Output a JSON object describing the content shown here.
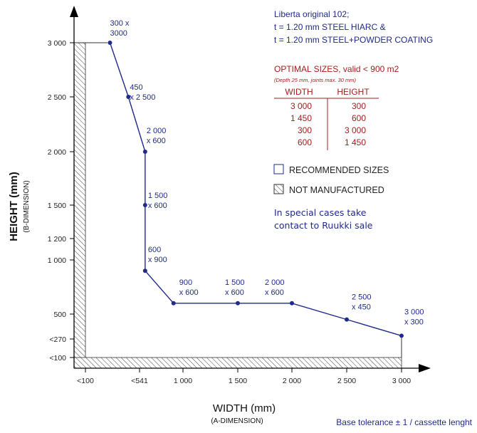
{
  "chart_data": {
    "type": "line",
    "xlabel": "WIDTH (mm)",
    "xlabel_sub": "(A-DIMENSION)",
    "ylabel": "HEIGHT (mm)",
    "ylabel_sub": "(B-DIMENSION)",
    "x_ticks": [
      {
        "value": 100,
        "label": "<100"
      },
      {
        "value": 541,
        "label": "<541"
      },
      {
        "value": 1000,
        "label": "1 000"
      },
      {
        "value": 1500,
        "label": "1 500"
      },
      {
        "value": 2000,
        "label": "2 000"
      },
      {
        "value": 2500,
        "label": "2 500"
      },
      {
        "value": 3000,
        "label": "3 000"
      }
    ],
    "y_ticks": [
      {
        "value": 100,
        "label": "<100"
      },
      {
        "value": 270,
        "label": "<270"
      },
      {
        "value": 500,
        "label": "500"
      },
      {
        "value": 1000,
        "label": "1 000"
      },
      {
        "value": 1200,
        "label": "1 200"
      },
      {
        "value": 1500,
        "label": "1 500"
      },
      {
        "value": 2000,
        "label": "2 000"
      },
      {
        "value": 2500,
        "label": "2 500"
      },
      {
        "value": 3000,
        "label": "3 000"
      }
    ],
    "x_anchors": [
      [
        100,
        100
      ],
      [
        541,
        541
      ],
      [
        1000,
        1000
      ],
      [
        1500,
        1500
      ],
      [
        2000,
        2000
      ],
      [
        2500,
        2500
      ],
      [
        3000,
        3000
      ]
    ],
    "y_anchors": [
      [
        100,
        100
      ],
      [
        270,
        270
      ],
      [
        500,
        500
      ],
      [
        1000,
        1000
      ],
      [
        1200,
        1200
      ],
      [
        1500,
        1500
      ],
      [
        2000,
        2000
      ],
      [
        2500,
        2500
      ],
      [
        3000,
        3000
      ]
    ],
    "series": [
      {
        "points": [
          {
            "x": 300,
            "y": 3000,
            "label": [
              "300 x",
              "3000"
            ]
          },
          {
            "x": 450,
            "y": 2500,
            "label": [
              "450",
              "x 2 500"
            ]
          },
          {
            "x": 600,
            "y": 2000,
            "label": [
              "2 000",
              "x 600"
            ]
          },
          {
            "x": 600,
            "y": 1500,
            "label": [
              "1 500",
              "x 600"
            ]
          },
          {
            "x": 600,
            "y": 900,
            "label": [
              "600",
              "x 900"
            ]
          },
          {
            "x": 900,
            "y": 600,
            "label": [
              "900",
              "x 600"
            ]
          },
          {
            "x": 1500,
            "y": 600,
            "label": [
              "1 500",
              "x 600"
            ]
          },
          {
            "x": 2000,
            "y": 600,
            "label": [
              "2 000",
              "x 600"
            ]
          },
          {
            "x": 2500,
            "y": 450,
            "label": [
              "2 500",
              "x 450"
            ]
          },
          {
            "x": 3000,
            "y": 300,
            "label": [
              "3 000",
              "x 300"
            ]
          }
        ]
      }
    ],
    "not_manufactured_region": "width < 100 mm or height < 100 mm",
    "grid": false
  },
  "info": {
    "lines": [
      "Liberta original 102;",
      "t = 1.20 mm STEEL HIARC &",
      "t = 1.20 mm STEEL+POWDER COATING"
    ]
  },
  "optimal": {
    "title": "OPTIMAL SIZES, valid < 900 m2",
    "subtitle": "(Depth 25 mm, joints max. 30 mm)",
    "col_width": "WIDTH",
    "col_height": "HEIGHT",
    "rows": [
      {
        "width": "3 000",
        "height": "300"
      },
      {
        "width": "1 450",
        "height": "600"
      },
      {
        "width": "300",
        "height": "3 000"
      },
      {
        "width": "600",
        "height": "1 450"
      }
    ]
  },
  "legend": {
    "recommended": "RECOMMENDED SIZES",
    "not_manufactured": "NOT MANUFACTURED"
  },
  "note": [
    "In special cases take",
    "contact to Ruukki sale"
  ],
  "footer": "Base tolerance ± 1 / cassette lenght",
  "colors": {
    "series": "#1f2a8a",
    "point": "#1f2a8a",
    "table_red": "#a51d1d",
    "axis": "#000000"
  }
}
